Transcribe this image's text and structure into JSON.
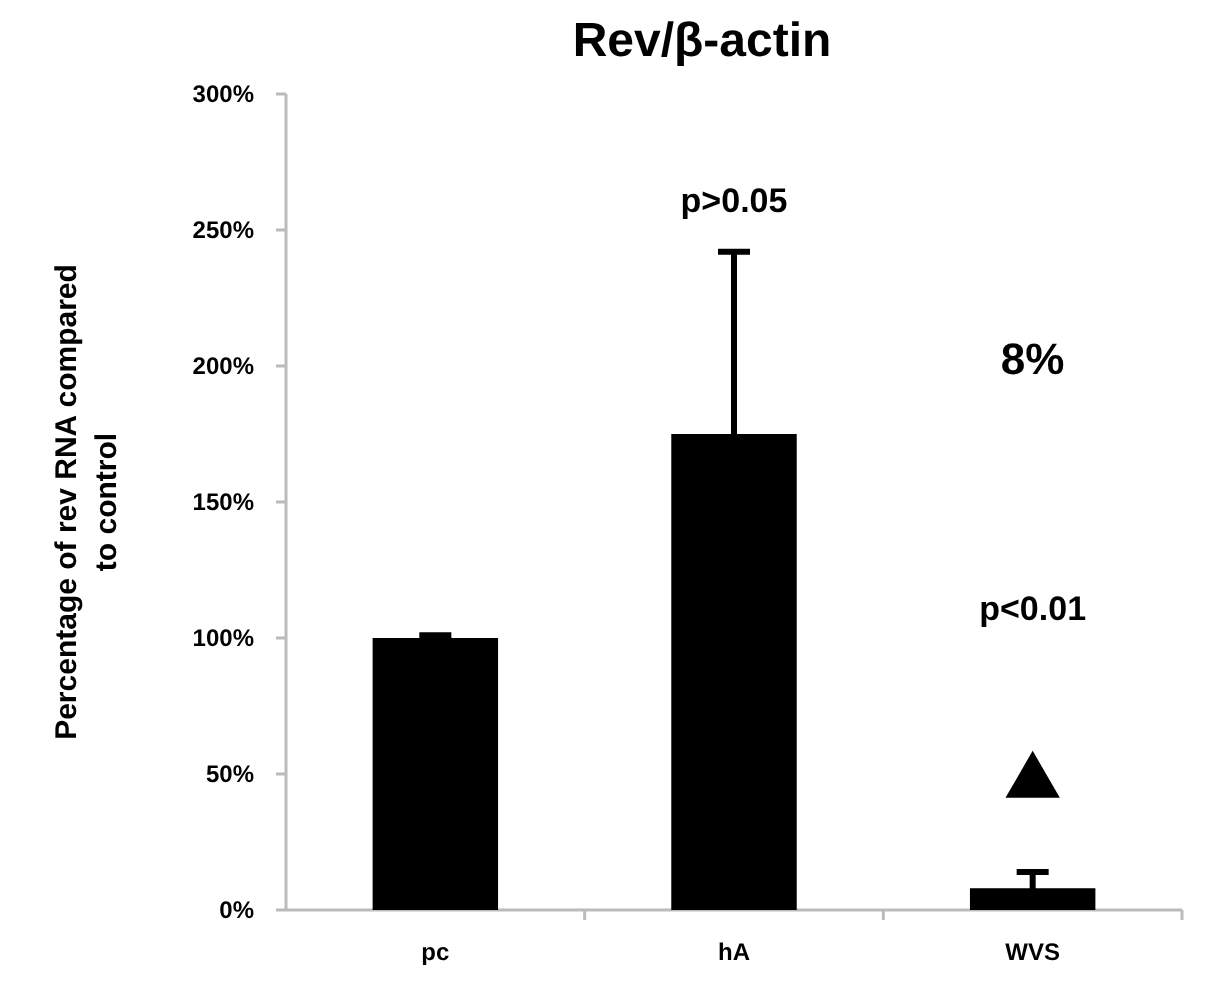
{
  "chart_data": {
    "type": "bar",
    "title": "Rev/β-actin",
    "ylabel": "Percentage of rev RNA compared to control",
    "categories": [
      "pc",
      "hA",
      "WVS"
    ],
    "series": [
      {
        "color": "#000000",
        "values": [
          1,
          1.75,
          0.08
        ],
        "errors": [
          0.01,
          0.67,
          0.06
        ]
      },
      {
        "type": "scatter",
        "x": [
          "WVS"
        ],
        "color": "#000000",
        "marker": "triangle",
        "values": [
          0.47
        ]
      }
    ],
    "ylim": [
      0,
      3
    ],
    "yticks": [
      {
        "value": 0,
        "label": "0%"
      },
      {
        "value": 0.5,
        "label": "50%"
      },
      {
        "value": 1,
        "label": "100%"
      },
      {
        "value": 1.5,
        "label": "150%"
      },
      {
        "value": 2,
        "label": "200%"
      },
      {
        "value": 2.5,
        "label": "250%"
      },
      {
        "value": 3,
        "label": "300%"
      }
    ],
    "annotations": [
      {
        "text": "p>0.05",
        "x": "hA",
        "y": 2.42
      },
      "8%",
      "p<0.01"
    ],
    "grid": false
  }
}
